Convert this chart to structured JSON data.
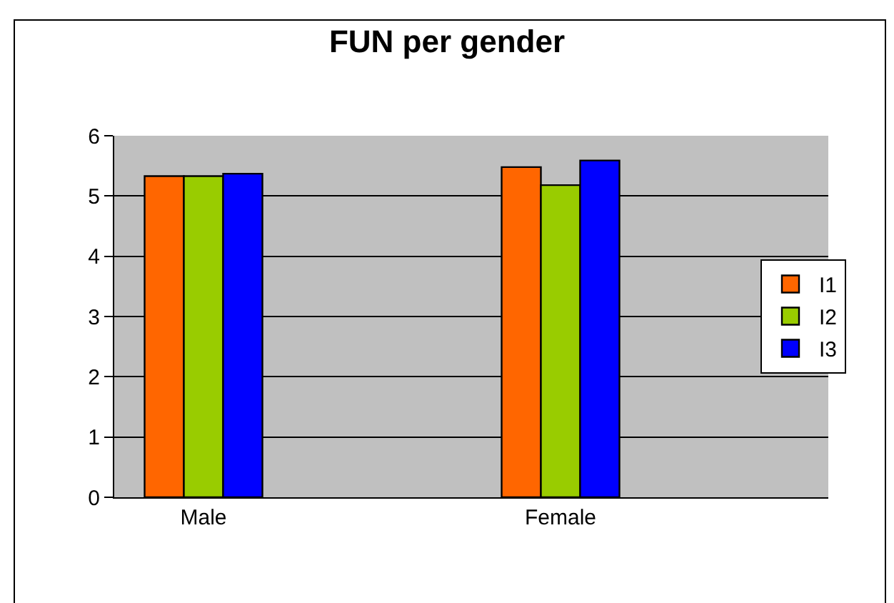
{
  "chart_data": {
    "type": "bar",
    "title": "FUN per gender",
    "categories": [
      "Male",
      null,
      "Female",
      null
    ],
    "series": [
      {
        "name": "I1",
        "color": "#ff6600",
        "values": [
          5.33,
          null,
          5.48,
          null
        ]
      },
      {
        "name": "I2",
        "color": "#99cc00",
        "values": [
          5.33,
          null,
          5.18,
          null
        ]
      },
      {
        "name": "I3",
        "color": "#0000ff",
        "values": [
          5.37,
          null,
          5.59,
          null
        ]
      }
    ],
    "ylim": [
      0,
      6
    ],
    "yticks": [
      0,
      1,
      2,
      3,
      4,
      5,
      6
    ],
    "grid": "y",
    "legend": "right"
  }
}
